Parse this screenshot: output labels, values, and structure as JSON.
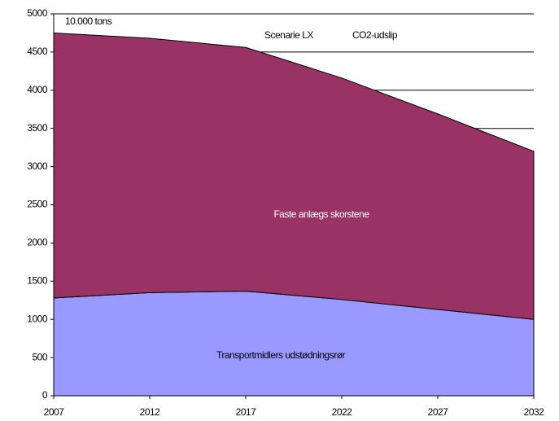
{
  "chart_data": {
    "type": "stacked_area",
    "title": "Scenarie LX",
    "subtitle": "CO2-udslip",
    "y_label": "10.000 tons",
    "x": [
      2007,
      2012,
      2017,
      2022,
      2027,
      2032
    ],
    "xlim": [
      2007,
      2032
    ],
    "xticks": [
      2007,
      2012,
      2017,
      2022,
      2027,
      2032
    ],
    "ylim": [
      0,
      5000
    ],
    "yticks": [
      0,
      500,
      1000,
      1500,
      2000,
      2500,
      3000,
      3500,
      4000,
      4500,
      5000
    ],
    "grid": true,
    "series": [
      {
        "name": "Transportmidlers udstødningsrør",
        "color": "#9999ff",
        "values": [
          1280,
          1350,
          1370,
          1260,
          1130,
          1000
        ]
      },
      {
        "name": "Faste anlægs skorstene",
        "color": "#993366",
        "values": [
          3470,
          3330,
          3190,
          2900,
          2560,
          2200
        ]
      }
    ]
  }
}
